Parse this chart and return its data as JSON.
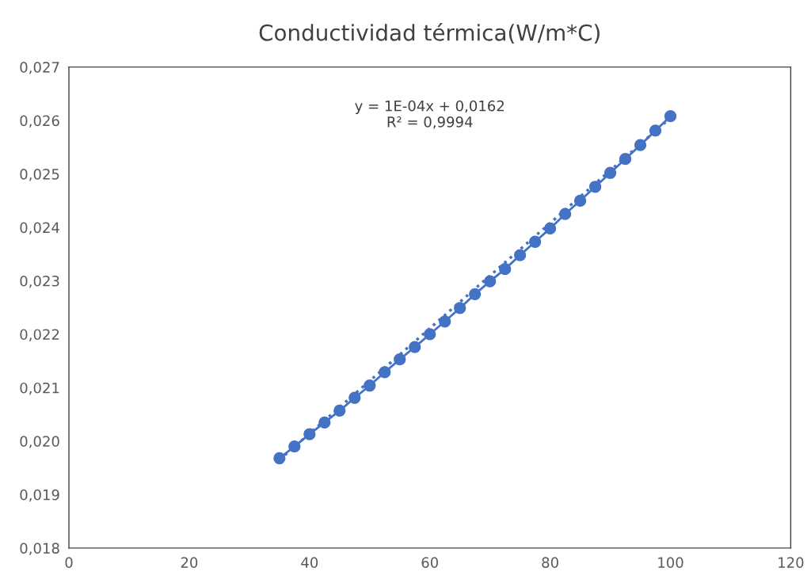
{
  "chart_data": {
    "type": "line",
    "title": "Conductividad térmica(W/m*C)",
    "series": [
      {
        "color": "#4472c4",
        "marker": "circle",
        "line_style": "solid",
        "x": [
          35,
          37.5,
          40,
          42.5,
          45,
          47.5,
          50,
          52.5,
          55,
          57.5,
          60,
          62.5,
          65,
          67.5,
          70,
          72.5,
          75,
          77.5,
          80,
          82.5,
          85,
          87.5,
          90,
          92.5,
          95,
          97.5,
          100
        ],
        "values": [
          0.01968,
          0.0199,
          0.02013,
          0.02035,
          0.02057,
          0.02081,
          0.02104,
          0.02129,
          0.02153,
          0.02176,
          0.022,
          0.02224,
          0.02249,
          0.02275,
          0.02299,
          0.02322,
          0.02348,
          0.02373,
          0.02398,
          0.02425,
          0.0245,
          0.02476,
          0.02502,
          0.02528,
          0.02554,
          0.02581,
          0.02608
        ]
      },
      {
        "type": "line",
        "color": "#4472c4",
        "marker": "none",
        "line_style": "dotted",
        "x": [
          35,
          100
        ],
        "values": [
          0.01965,
          0.02605
        ]
      }
    ],
    "annotations": [
      "y = 1E-04x + 0,0162\nR² = 0,9994"
    ],
    "xlim": [
      0,
      120
    ],
    "xticks": [
      0,
      20,
      40,
      60,
      80,
      100,
      120
    ],
    "ylim": [
      0.018,
      0.027
    ],
    "yticks": [
      {
        "value": 0.018,
        "label": "0,018"
      },
      {
        "value": 0.019,
        "label": "0,019"
      },
      {
        "value": 0.02,
        "label": "0,020"
      },
      {
        "value": 0.021,
        "label": "0,021"
      },
      {
        "value": 0.022,
        "label": "0,022"
      },
      {
        "value": 0.023,
        "label": "0,023"
      },
      {
        "value": 0.024,
        "label": "0,024"
      },
      {
        "value": 0.025,
        "label": "0,025"
      },
      {
        "value": 0.026,
        "label": "0,026"
      },
      {
        "value": 0.027,
        "label": "0,027"
      }
    ],
    "grid": false
  }
}
